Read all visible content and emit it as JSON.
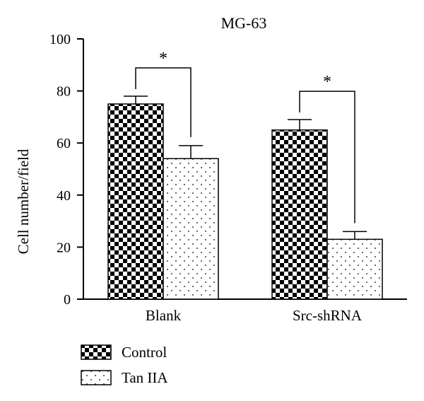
{
  "chart_data": {
    "type": "bar",
    "title": "MG-63",
    "xlabel": "",
    "ylabel": "Cell number/field",
    "ylim": [
      0,
      100
    ],
    "yticks": [
      0,
      20,
      40,
      60,
      80,
      100
    ],
    "categories": [
      "Blank",
      "Src-shRNA"
    ],
    "series": [
      {
        "name": "Control",
        "values": [
          75,
          65
        ],
        "errors": [
          3,
          4
        ],
        "pattern": "checkerboard"
      },
      {
        "name": "Tan IIA",
        "values": [
          54,
          23
        ],
        "errors": [
          5,
          3
        ],
        "pattern": "dots"
      }
    ],
    "significance": [
      {
        "category": "Blank",
        "label": "*"
      },
      {
        "category": "Src-shRNA",
        "label": "*"
      }
    ],
    "grid": false,
    "legend_position": "bottom-left"
  }
}
